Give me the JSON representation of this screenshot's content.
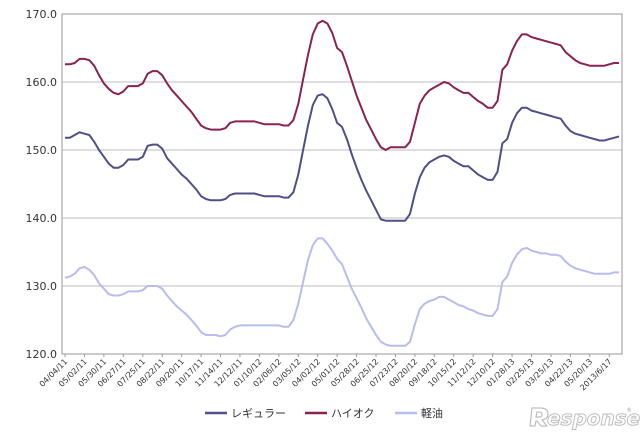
{
  "chart_data": {
    "type": "line",
    "title": "",
    "xlabel": "",
    "ylabel": "",
    "ylim": [
      120,
      170
    ],
    "yticks": [
      "120.0",
      "130.0",
      "140.0",
      "150.0",
      "160.0",
      "170.0"
    ],
    "grid": "horizontal",
    "legend_position": "bottom",
    "x_count": 115,
    "xticks": [
      {
        "index": 0,
        "label": "04/04/11"
      },
      {
        "index": 4,
        "label": "05/02/11"
      },
      {
        "index": 8,
        "label": "05/30/11"
      },
      {
        "index": 12,
        "label": "06/27/11"
      },
      {
        "index": 16,
        "label": "07/25/11"
      },
      {
        "index": 20,
        "label": "08/22/11"
      },
      {
        "index": 24,
        "label": "09/20/11"
      },
      {
        "index": 28,
        "label": "10/17/11"
      },
      {
        "index": 32,
        "label": "11/14/11"
      },
      {
        "index": 36,
        "label": "12/12/11"
      },
      {
        "index": 40,
        "label": "01/10/12"
      },
      {
        "index": 44,
        "label": "02/06/12"
      },
      {
        "index": 48,
        "label": "03/05/12"
      },
      {
        "index": 52,
        "label": "04/02/12"
      },
      {
        "index": 56,
        "label": "05/01/12"
      },
      {
        "index": 60,
        "label": "05/28/12"
      },
      {
        "index": 64,
        "label": "06/25/12"
      },
      {
        "index": 68,
        "label": "07/23/12"
      },
      {
        "index": 72,
        "label": "08/20/12"
      },
      {
        "index": 76,
        "label": "09/18/12"
      },
      {
        "index": 80,
        "label": "10/15/12"
      },
      {
        "index": 84,
        "label": "11/12/12"
      },
      {
        "index": 88,
        "label": "12/10/12"
      },
      {
        "index": 92,
        "label": "01/28/13"
      },
      {
        "index": 96,
        "label": "02/25/13"
      },
      {
        "index": 100,
        "label": "03/25/13"
      },
      {
        "index": 104,
        "label": "04/22/13"
      },
      {
        "index": 108,
        "label": "05/20/13"
      },
      {
        "index": 112,
        "label": "2013/6/17"
      }
    ],
    "series": [
      {
        "name": "レギュラー",
        "color": "#4f4f8a",
        "values": [
          151.8,
          151.8,
          152.2,
          152.6,
          152.4,
          152.2,
          151.2,
          150.0,
          149.0,
          148.0,
          147.4,
          147.4,
          147.8,
          148.6,
          148.6,
          148.6,
          149.0,
          150.6,
          150.8,
          150.8,
          150.2,
          148.8,
          148.0,
          147.2,
          146.4,
          145.8,
          145.0,
          144.2,
          143.2,
          142.8,
          142.6,
          142.6,
          142.6,
          142.8,
          143.4,
          143.6,
          143.6,
          143.6,
          143.6,
          143.6,
          143.4,
          143.2,
          143.2,
          143.2,
          143.2,
          143.0,
          143.0,
          143.8,
          146.4,
          150.0,
          153.6,
          156.6,
          158.0,
          158.2,
          157.6,
          156.0,
          154.0,
          153.4,
          151.6,
          149.4,
          147.4,
          145.6,
          144.0,
          142.6,
          141.2,
          139.8,
          139.6,
          139.6,
          139.6,
          139.6,
          139.6,
          140.6,
          143.6,
          146.0,
          147.4,
          148.2,
          148.6,
          149.0,
          149.2,
          149.0,
          148.4,
          148.0,
          147.6,
          147.6,
          147.0,
          146.4,
          146.0,
          145.6,
          145.6,
          146.8,
          151.0,
          151.6,
          154.0,
          155.4,
          156.2,
          156.2,
          155.8,
          155.6,
          155.4,
          155.2,
          155.0,
          154.8,
          154.6,
          153.6,
          152.8,
          152.4,
          152.2,
          152.0,
          151.8,
          151.6,
          151.4,
          151.4,
          151.6,
          151.8,
          152.0
        ]
      },
      {
        "name": "ハイオク",
        "color": "#8b2252",
        "values": [
          162.6,
          162.6,
          162.8,
          163.4,
          163.4,
          163.2,
          162.4,
          161.0,
          159.8,
          159.0,
          158.4,
          158.2,
          158.6,
          159.4,
          159.4,
          159.4,
          159.8,
          161.2,
          161.6,
          161.6,
          161.0,
          159.8,
          158.8,
          158.0,
          157.2,
          156.4,
          155.6,
          154.6,
          153.6,
          153.2,
          153.0,
          153.0,
          153.0,
          153.2,
          154.0,
          154.2,
          154.2,
          154.2,
          154.2,
          154.2,
          154.0,
          153.8,
          153.8,
          153.8,
          153.8,
          153.6,
          153.6,
          154.4,
          156.8,
          160.4,
          164.0,
          167.0,
          168.6,
          169.0,
          168.6,
          167.2,
          165.0,
          164.4,
          162.4,
          160.2,
          158.0,
          156.2,
          154.4,
          153.0,
          151.6,
          150.4,
          150.0,
          150.4,
          150.4,
          150.4,
          150.4,
          151.2,
          154.0,
          156.8,
          158.0,
          158.8,
          159.2,
          159.6,
          160.0,
          159.8,
          159.2,
          158.8,
          158.4,
          158.4,
          157.8,
          157.2,
          156.8,
          156.2,
          156.2,
          157.2,
          161.8,
          162.6,
          164.6,
          166.0,
          167.0,
          167.0,
          166.6,
          166.4,
          166.2,
          166.0,
          165.8,
          165.6,
          165.4,
          164.4,
          163.8,
          163.2,
          162.8,
          162.6,
          162.4,
          162.4,
          162.4,
          162.4,
          162.6,
          162.8,
          162.8
        ]
      },
      {
        "name": "軽油",
        "color": "#b8bcf0",
        "values": [
          131.2,
          131.4,
          131.8,
          132.6,
          132.8,
          132.4,
          131.6,
          130.4,
          129.6,
          128.8,
          128.6,
          128.6,
          128.8,
          129.2,
          129.2,
          129.2,
          129.4,
          130.0,
          130.0,
          130.0,
          129.6,
          128.6,
          127.8,
          127.0,
          126.4,
          125.8,
          125.0,
          124.2,
          123.2,
          122.8,
          122.8,
          122.8,
          122.6,
          122.8,
          123.6,
          124.0,
          124.2,
          124.2,
          124.2,
          124.2,
          124.2,
          124.2,
          124.2,
          124.2,
          124.2,
          124.0,
          124.0,
          125.0,
          127.4,
          130.6,
          133.8,
          136.0,
          137.0,
          137.0,
          136.2,
          135.2,
          134.0,
          133.2,
          131.4,
          129.6,
          128.2,
          126.8,
          125.2,
          124.0,
          122.8,
          121.8,
          121.4,
          121.2,
          121.2,
          121.2,
          121.2,
          121.8,
          124.4,
          126.6,
          127.4,
          127.8,
          128.0,
          128.4,
          128.4,
          128.0,
          127.6,
          127.2,
          127.0,
          126.6,
          126.4,
          126.0,
          125.8,
          125.6,
          125.6,
          126.6,
          130.6,
          131.4,
          133.4,
          134.6,
          135.4,
          135.6,
          135.2,
          135.0,
          134.8,
          134.8,
          134.6,
          134.6,
          134.4,
          133.6,
          133.0,
          132.6,
          132.4,
          132.2,
          132.0,
          131.8,
          131.8,
          131.8,
          131.8,
          132.0,
          132.0
        ]
      }
    ]
  },
  "watermark": {
    "text": "esponse.",
    "registered": "®"
  }
}
